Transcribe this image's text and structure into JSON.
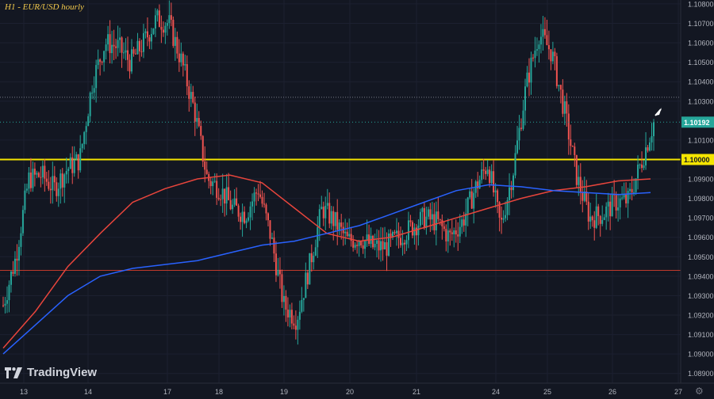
{
  "header": {
    "title": "H1 - EUR/USD hourly"
  },
  "brand": {
    "name": "TradingView"
  },
  "chart_data": {
    "type": "candlestick",
    "title": "H1 - EUR/USD hourly",
    "x_ticks": [
      "13",
      "14",
      "17",
      "18",
      "19",
      "20",
      "21",
      "24",
      "25",
      "26",
      "27"
    ],
    "y_ticks": [
      "1.10800",
      "1.10700",
      "1.10600",
      "1.10500",
      "1.10400",
      "1.10300",
      "1.10100",
      "1.10000",
      "1.09900",
      "1.09800",
      "1.09700",
      "1.09600",
      "1.09500",
      "1.09400",
      "1.09300",
      "1.09200",
      "1.09100",
      "1.09000",
      "1.08900"
    ],
    "ylim": [
      1.0885,
      1.1082
    ],
    "last_price": "1.10192",
    "highlight_level": "1.10000",
    "levels": [
      {
        "value": 1.1,
        "color": "#f5e500",
        "style": "solid"
      },
      {
        "value": 1.0943,
        "color": "#c0392b",
        "style": "solid"
      },
      {
        "value": 1.1032,
        "color": "#787b86",
        "style": "dotted"
      }
    ],
    "colors": {
      "up": "#26a69a",
      "down": "#ef5350",
      "ma_red": "#e8453c",
      "ma_blue": "#2962ff"
    },
    "price_path": [
      [
        0,
        1.0925
      ],
      [
        1,
        1.095
      ],
      [
        2,
        1.099
      ],
      [
        3,
        1.0992
      ],
      [
        4,
        1.0985
      ],
      [
        5,
        1.0995
      ],
      [
        6,
        1.1
      ],
      [
        7,
        1.104
      ],
      [
        8,
        1.106
      ],
      [
        9,
        1.1058
      ],
      [
        10,
        1.105
      ],
      [
        11,
        1.106
      ],
      [
        12,
        1.1072
      ],
      [
        13,
        1.107
      ],
      [
        14,
        1.105
      ],
      [
        15,
        1.1025
      ],
      [
        16,
        1.099
      ],
      [
        17,
        1.0985
      ],
      [
        18,
        1.0975
      ],
      [
        19,
        1.0972
      ],
      [
        20,
        1.0985
      ],
      [
        21,
        1.096
      ],
      [
        22,
        1.0925
      ],
      [
        23,
        1.0918
      ],
      [
        24,
        1.0945
      ],
      [
        25,
        1.0975
      ],
      [
        26,
        1.0968
      ],
      [
        27,
        1.0958
      ],
      [
        28,
        1.096
      ],
      [
        29,
        1.0955
      ],
      [
        30,
        1.0955
      ],
      [
        31,
        1.096
      ],
      [
        32,
        1.0965
      ],
      [
        33,
        1.097
      ],
      [
        34,
        1.0968
      ],
      [
        35,
        1.096
      ],
      [
        36,
        1.0968
      ],
      [
        37,
        1.0985
      ],
      [
        38,
        1.0998
      ],
      [
        39,
        1.0965
      ],
      [
        40,
        1.0995
      ],
      [
        41,
        1.1038
      ],
      [
        42,
        1.1065
      ],
      [
        43,
        1.1055
      ],
      [
        44,
        1.1025
      ],
      [
        45,
        1.099
      ],
      [
        46,
        1.097
      ],
      [
        47,
        1.0972
      ],
      [
        48,
        1.0978
      ],
      [
        49,
        1.0979
      ],
      [
        50,
        1.0998
      ],
      [
        51,
        1.1019
      ]
    ],
    "ma_red": [
      [
        0,
        1.0903
      ],
      [
        2,
        1.0922
      ],
      [
        4,
        1.0945
      ],
      [
        6,
        1.0962
      ],
      [
        8,
        1.0978
      ],
      [
        10,
        1.0985
      ],
      [
        12,
        1.099
      ],
      [
        14,
        1.0992
      ],
      [
        16,
        1.0988
      ],
      [
        18,
        1.0975
      ],
      [
        20,
        1.0962
      ],
      [
        22,
        1.0958
      ],
      [
        24,
        1.096
      ],
      [
        26,
        1.0965
      ],
      [
        28,
        1.097
      ],
      [
        30,
        1.0975
      ],
      [
        32,
        1.098
      ],
      [
        34,
        1.0984
      ],
      [
        36,
        1.0986
      ],
      [
        38,
        1.0989
      ],
      [
        40,
        1.099
      ]
    ],
    "ma_blue": [
      [
        0,
        1.09
      ],
      [
        2,
        1.0915
      ],
      [
        4,
        1.093
      ],
      [
        6,
        1.094
      ],
      [
        8,
        1.0944
      ],
      [
        10,
        1.0946
      ],
      [
        12,
        1.0948
      ],
      [
        14,
        1.0952
      ],
      [
        16,
        1.0956
      ],
      [
        18,
        1.0958
      ],
      [
        20,
        1.0962
      ],
      [
        22,
        1.0966
      ],
      [
        24,
        1.0972
      ],
      [
        26,
        1.0978
      ],
      [
        28,
        1.0984
      ],
      [
        30,
        1.0987
      ],
      [
        32,
        1.0986
      ],
      [
        34,
        1.0984
      ],
      [
        36,
        1.0983
      ],
      [
        38,
        1.0982
      ],
      [
        40,
        1.0983
      ]
    ]
  }
}
